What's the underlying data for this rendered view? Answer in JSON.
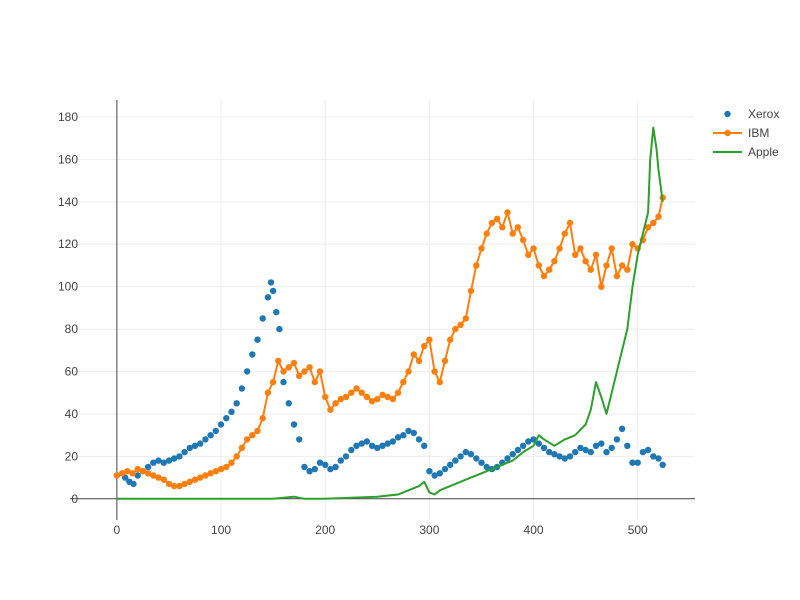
{
  "chart_data": {
    "type": "line",
    "title": "",
    "xlabel": "",
    "ylabel": "",
    "xlim": [
      -45,
      555
    ],
    "ylim": [
      -10,
      188
    ],
    "x_ticks": [
      0,
      100,
      200,
      300,
      400,
      500
    ],
    "y_ticks": [
      0,
      20,
      40,
      60,
      80,
      100,
      120,
      140,
      160,
      180
    ],
    "grid": true,
    "legend_position": "top-right",
    "series": [
      {
        "name": "Xerox",
        "mode": "markers",
        "color": "#1f77b4",
        "x": [
          0,
          8,
          12,
          16,
          20,
          25,
          30,
          35,
          40,
          45,
          50,
          55,
          60,
          65,
          70,
          75,
          80,
          85,
          90,
          95,
          100,
          105,
          110,
          115,
          120,
          125,
          130,
          135,
          140,
          145,
          148,
          150,
          153,
          156,
          160,
          165,
          170,
          175,
          180,
          185,
          190,
          195,
          200,
          205,
          210,
          215,
          220,
          225,
          230,
          235,
          240,
          245,
          250,
          255,
          260,
          265,
          270,
          275,
          280,
          285,
          290,
          295,
          300,
          305,
          310,
          315,
          320,
          325,
          330,
          335,
          340,
          345,
          350,
          355,
          360,
          365,
          370,
          375,
          380,
          385,
          390,
          395,
          400,
          405,
          410,
          415,
          420,
          425,
          430,
          435,
          440,
          445,
          450,
          455,
          460,
          465,
          470,
          475,
          480,
          485,
          490,
          495,
          500,
          505,
          510,
          515,
          520,
          524
        ],
        "y": [
          11,
          10,
          8,
          7,
          11,
          13,
          15,
          17,
          18,
          17,
          18,
          19,
          20,
          22,
          24,
          25,
          26,
          28,
          30,
          32,
          35,
          38,
          41,
          45,
          52,
          60,
          68,
          75,
          85,
          95,
          102,
          98,
          88,
          80,
          55,
          45,
          35,
          28,
          15,
          13,
          14,
          17,
          16,
          14,
          15,
          18,
          20,
          23,
          25,
          26,
          27,
          25,
          24,
          25,
          26,
          27,
          29,
          30,
          32,
          31,
          28,
          25,
          13,
          11,
          12,
          14,
          16,
          18,
          20,
          22,
          21,
          19,
          17,
          15,
          14,
          15,
          17,
          19,
          21,
          23,
          25,
          27,
          28,
          26,
          24,
          22,
          21,
          20,
          19,
          20,
          22,
          24,
          23,
          22,
          25,
          26,
          22,
          24,
          28,
          33,
          25,
          17,
          17,
          22,
          23,
          20,
          19,
          16
        ]
      },
      {
        "name": "IBM",
        "mode": "lines+markers",
        "color": "#ff7f0e",
        "x": [
          0,
          5,
          10,
          15,
          20,
          25,
          30,
          35,
          40,
          45,
          50,
          55,
          60,
          65,
          70,
          75,
          80,
          85,
          90,
          95,
          100,
          105,
          110,
          115,
          120,
          125,
          130,
          135,
          140,
          145,
          150,
          155,
          160,
          165,
          170,
          175,
          180,
          185,
          190,
          195,
          200,
          205,
          210,
          215,
          220,
          225,
          230,
          235,
          240,
          245,
          250,
          255,
          260,
          265,
          270,
          275,
          280,
          285,
          290,
          295,
          300,
          305,
          310,
          315,
          320,
          325,
          330,
          335,
          340,
          345,
          350,
          355,
          360,
          365,
          370,
          375,
          380,
          385,
          390,
          395,
          400,
          405,
          410,
          415,
          420,
          425,
          430,
          435,
          440,
          445,
          450,
          455,
          460,
          465,
          470,
          475,
          480,
          485,
          490,
          495,
          500,
          505,
          510,
          515,
          520,
          524
        ],
        "y": [
          11,
          12,
          13,
          12,
          14,
          13,
          12,
          11,
          10,
          9,
          7,
          6,
          6,
          7,
          8,
          9,
          10,
          11,
          12,
          13,
          14,
          15,
          17,
          20,
          24,
          28,
          30,
          32,
          38,
          50,
          55,
          65,
          60,
          62,
          64,
          58,
          60,
          62,
          55,
          60,
          48,
          42,
          45,
          47,
          48,
          50,
          52,
          50,
          48,
          46,
          47,
          49,
          48,
          47,
          50,
          55,
          60,
          68,
          65,
          72,
          75,
          60,
          55,
          65,
          75,
          80,
          82,
          85,
          98,
          110,
          118,
          125,
          130,
          132,
          128,
          135,
          125,
          128,
          122,
          115,
          118,
          110,
          105,
          108,
          112,
          118,
          125,
          130,
          115,
          118,
          112,
          108,
          115,
          100,
          110,
          118,
          105,
          110,
          108,
          120,
          118,
          122,
          128,
          130,
          133,
          142
        ]
      },
      {
        "name": "Apple",
        "mode": "lines",
        "color": "#2ca02c",
        "x": [
          0,
          50,
          100,
          150,
          170,
          180,
          200,
          250,
          270,
          280,
          290,
          295,
          300,
          305,
          310,
          320,
          330,
          340,
          350,
          360,
          370,
          380,
          390,
          400,
          405,
          410,
          420,
          430,
          440,
          450,
          455,
          460,
          465,
          470,
          475,
          480,
          485,
          490,
          495,
          500,
          505,
          510,
          512,
          515,
          518,
          520,
          524
        ],
        "y": [
          0,
          0,
          0,
          0,
          1,
          0,
          0,
          1,
          2,
          4,
          6,
          8,
          3,
          2,
          4,
          6,
          8,
          10,
          12,
          14,
          16,
          18,
          22,
          25,
          30,
          28,
          25,
          28,
          30,
          35,
          42,
          55,
          48,
          40,
          50,
          60,
          70,
          80,
          100,
          115,
          125,
          135,
          160,
          175,
          165,
          155,
          140
        ]
      }
    ]
  }
}
